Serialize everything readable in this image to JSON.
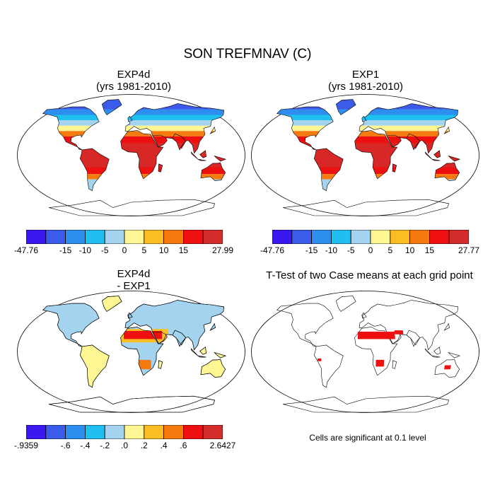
{
  "title": "SON TREFMNAV (C)",
  "panels": [
    {
      "title1": "EXP4d",
      "title2": "(yrs 1981-2010)",
      "kind": "abs"
    },
    {
      "title1": "EXP1",
      "title2": "(yrs 1981-2010)",
      "kind": "abs"
    },
    {
      "title1": "EXP4d",
      "title2": "- EXP1",
      "kind": "diff"
    },
    {
      "title1": "T-Test of two Case means at each grid point",
      "title2": "",
      "kind": "ttest"
    }
  ],
  "colorbars": [
    {
      "labels": [
        "-47.76",
        "-15",
        "-10",
        "-5",
        "0",
        "5",
        "10",
        "15",
        "27.99"
      ]
    },
    {
      "labels": [
        "-47.76",
        "-15",
        "-10",
        "-5",
        "0",
        "5",
        "10",
        "15",
        "27.77"
      ]
    },
    {
      "labels": [
        ".9359",
        "-.6",
        "-.4",
        "-.2",
        ".0",
        ".2",
        ".4",
        ".6",
        "2.6427"
      ],
      "first_prefix": "-"
    }
  ],
  "palette_abs": [
    "#3a18f0",
    "#3b5ce8",
    "#2d8ef0",
    "#1fbff0",
    "#a3d3ef",
    "#fef593",
    "#fbbd24",
    "#f57a10",
    "#ee1010",
    "#d42b2b"
  ],
  "note": "Cells are significant at 0.1 level",
  "colors": {
    "ocean": "#ffffff",
    "outline": "#000000",
    "significant": "#ee1010"
  }
}
